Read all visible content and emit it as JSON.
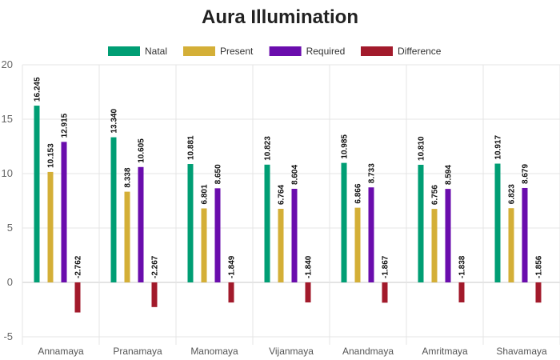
{
  "chart_data": {
    "type": "bar",
    "title": "Aura Illumination",
    "xlabel": "",
    "ylabel": "",
    "ylim": [
      -5,
      20
    ],
    "yticks": [
      -5,
      0,
      5,
      10,
      15,
      20
    ],
    "grid": true,
    "legend_position": "top-center",
    "categories": [
      "Annamaya",
      "Pranamaya",
      "Manomaya",
      "Vijanmaya",
      "Anandmaya",
      "Amritmaya",
      "Shavamaya"
    ],
    "series": [
      {
        "name": "Natal",
        "color": "#009e74",
        "values": [
          16.245,
          13.34,
          10.881,
          10.823,
          10.985,
          10.81,
          10.917
        ],
        "labels": [
          "16.245",
          "13.340",
          "10.881",
          "10.823",
          "10.985",
          "10.810",
          "10.917"
        ]
      },
      {
        "name": "Present",
        "color": "#d4af37",
        "values": [
          10.153,
          8.338,
          6.801,
          6.764,
          6.866,
          6.756,
          6.823
        ],
        "labels": [
          "10.153",
          "8.338",
          "6.801",
          "6.764",
          "6.866",
          "6.756",
          "6.823"
        ]
      },
      {
        "name": "Required",
        "color": "#6a0dad",
        "values": [
          12.915,
          10.605,
          8.65,
          8.604,
          8.733,
          8.594,
          8.679
        ],
        "labels": [
          "12.915",
          "10.605",
          "8.650",
          "8.604",
          "8.733",
          "8.594",
          "8.679"
        ]
      },
      {
        "name": "Difference",
        "color": "#a21a2b",
        "values": [
          -2.762,
          -2.267,
          -1.849,
          -1.84,
          -1.867,
          -1.838,
          -1.856
        ],
        "labels": [
          "-2.762",
          "-2.267",
          "-1.849",
          "-1.840",
          "-1.867",
          "-1.838",
          "-1.856"
        ]
      }
    ]
  }
}
